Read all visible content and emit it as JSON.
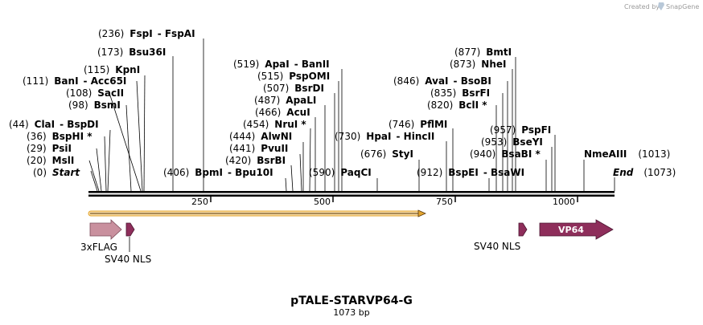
{
  "credit": {
    "text": "Created by",
    "brand": "SnapGene"
  },
  "title": "pTALE-STARVP64-G",
  "length_label": "1073 bp",
  "ticks": [
    "250",
    "500",
    "750",
    "1000"
  ],
  "sites": [
    {
      "pos": "(0)",
      "name": "Start"
    },
    {
      "pos": "(20)",
      "name": "MslI"
    },
    {
      "pos": "(29)",
      "name": "PsiI"
    },
    {
      "pos": "(36)",
      "name": "BspHI *"
    },
    {
      "pos": "(44)",
      "name": "ClaI",
      "alt": "BspDI"
    },
    {
      "pos": "(98)",
      "name": "BsmI"
    },
    {
      "pos": "(108)",
      "name": "SacII"
    },
    {
      "pos": "(111)",
      "name": "BanI",
      "alt": "Acc65I"
    },
    {
      "pos": "(115)",
      "name": "KpnI"
    },
    {
      "pos": "(173)",
      "name": "Bsu36I"
    },
    {
      "pos": "(236)",
      "name": "FspI",
      "alt": "FspAI"
    },
    {
      "pos": "(406)",
      "name": "BpmI",
      "alt": "Bpu10I"
    },
    {
      "pos": "(420)",
      "name": "BsrBI"
    },
    {
      "pos": "(441)",
      "name": "PvuII"
    },
    {
      "pos": "(444)",
      "name": "AlwNI"
    },
    {
      "pos": "(454)",
      "name": "NruI *"
    },
    {
      "pos": "(466)",
      "name": "AcuI"
    },
    {
      "pos": "(487)",
      "name": "ApaLI"
    },
    {
      "pos": "(507)",
      "name": "BsrDI"
    },
    {
      "pos": "(515)",
      "name": "PspOMI"
    },
    {
      "pos": "(519)",
      "name": "ApaI",
      "alt": "BanII"
    },
    {
      "pos": "(590)",
      "name": "PaqCI"
    },
    {
      "pos": "(676)",
      "name": "StyI"
    },
    {
      "pos": "(730)",
      "name": "HpaI",
      "alt": "HincII"
    },
    {
      "pos": "(746)",
      "name": "PflMI"
    },
    {
      "pos": "(912)",
      "name": "BspEI",
      "alt": "BsaWI"
    },
    {
      "pos": "(820)",
      "name": "BclI *"
    },
    {
      "pos": "(835)",
      "name": "BsrFI"
    },
    {
      "pos": "(846)",
      "name": "AvaI",
      "alt": "BsoBI"
    },
    {
      "pos": "(873)",
      "name": "NheI"
    },
    {
      "pos": "(877)",
      "name": "BmtI"
    },
    {
      "pos": "(940)",
      "name": "BsaBI *"
    },
    {
      "pos": "(953)",
      "name": "BseYI"
    },
    {
      "pos": "(957)",
      "name": "PspFI"
    },
    {
      "pos": "(1013)",
      "name": "NmeAIII"
    },
    {
      "pos": "(1073)",
      "name": "End"
    }
  ],
  "features": [
    {
      "name": "3xFLAG",
      "color": "#c9909e"
    },
    {
      "name": "SV40 NLS",
      "color": "#8e2e5b"
    },
    {
      "name": "SV40 NLS",
      "color": "#8e2e5b"
    },
    {
      "name": "VP64",
      "color": "#8e2e5b"
    }
  ],
  "orf_color": "#e3a52f"
}
